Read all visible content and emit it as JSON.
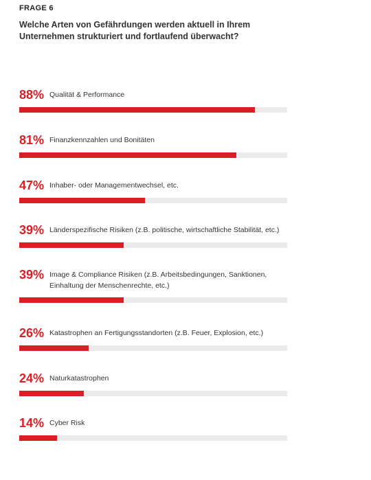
{
  "header": {
    "frage": "FRAGE 6",
    "question": "Welche Arten von Gefährdungen werden aktuell in Ihrem Unternehmen strukturiert und fortlaufend überwacht?"
  },
  "chart_data": {
    "type": "bar",
    "orientation": "horizontal",
    "xlim": [
      0,
      100
    ],
    "grid": false,
    "colors": {
      "bar": "#d91f26",
      "track": "#ebebeb",
      "percent_text": "#d91f26"
    },
    "items": [
      {
        "percent_label": "88%",
        "value": 88,
        "label": "Qualität & Performance"
      },
      {
        "percent_label": "81%",
        "value": 81,
        "label": "Finanzkennzahlen und Bonitäten"
      },
      {
        "percent_label": "47%",
        "value": 47,
        "label": "Inhaber- oder Managementwechsel, etc."
      },
      {
        "percent_label": "39%",
        "value": 39,
        "label": "Länderspezifische Risiken (z.B. politische, wirtschaftliche Stabilität, etc.)"
      },
      {
        "percent_label": "39%",
        "value": 39,
        "label": "Image & Compliance Risiken (z.B. Arbeitsbedingungen, Sanktionen, Einhaltung der Menschenrechte, etc.)"
      },
      {
        "percent_label": "26%",
        "value": 26,
        "label": "Katastrophen an Fertigungsstandorten (z.B. Feuer, Explosion, etc.)"
      },
      {
        "percent_label": "24%",
        "value": 24,
        "label": "Naturkatastrophen"
      },
      {
        "percent_label": "14%",
        "value": 14,
        "label": "Cyber Risk"
      }
    ]
  }
}
